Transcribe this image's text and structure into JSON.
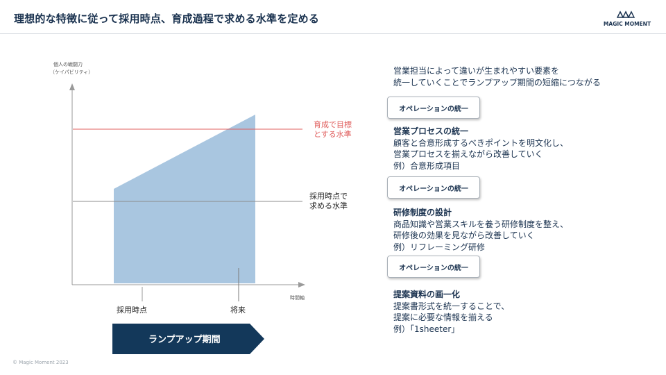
{
  "header": {
    "title": "理想的な特徴に従って採用時点、育成過程で求める水準を定める",
    "logo_text": "MAGIC MOMENT"
  },
  "diagram": {
    "y_axis_label_line1": "個人の戦闘力",
    "y_axis_label_line2": "（ケイパビリティ）",
    "x_axis_label": "時間軸",
    "target_label_line1": "育成で目標",
    "target_label_line2": "とする水準",
    "hiring_label_line1": "採用時点で",
    "hiring_label_line2": "求める水準",
    "tick_hiring": "採用時点",
    "tick_future": "将来",
    "rampup_label": "ランプアップ期間",
    "colors": {
      "area_fill": "#a9c6e0",
      "target_line": "#e0605f",
      "hiring_line": "#8c8c8c",
      "axis": "#9a9a9a",
      "rampup_arrow": "#13385a"
    }
  },
  "right_panel": {
    "intro_line1": "営業担当によって違いが生まれやすい要素を",
    "intro_line2": "統一していくことでランプアップ期間の短縮につながる",
    "operation_button_label": "オペレーションの統一",
    "sections": [
      {
        "title": "営業プロセスの統一",
        "line1": "顧客と合意形成するべきポイントを明文化し、",
        "line2": "営業プロセスを揃えながら改善していく",
        "line3": "例）合意形成項目"
      },
      {
        "title": "研修制度の設計",
        "line1": "商品知識や営業スキルを養う研修制度を整え、",
        "line2": "研修後の効果を見ながら改善していく",
        "line3": "例）リフレーミング研修"
      },
      {
        "title": "提案資料の画一化",
        "line1": "提案書形式を統一することで、",
        "line2": "提案に必要な情報を揃える",
        "line3": "例）「1sheeter」"
      }
    ]
  },
  "footer": {
    "copyright": "© Magic Moment 2023"
  }
}
